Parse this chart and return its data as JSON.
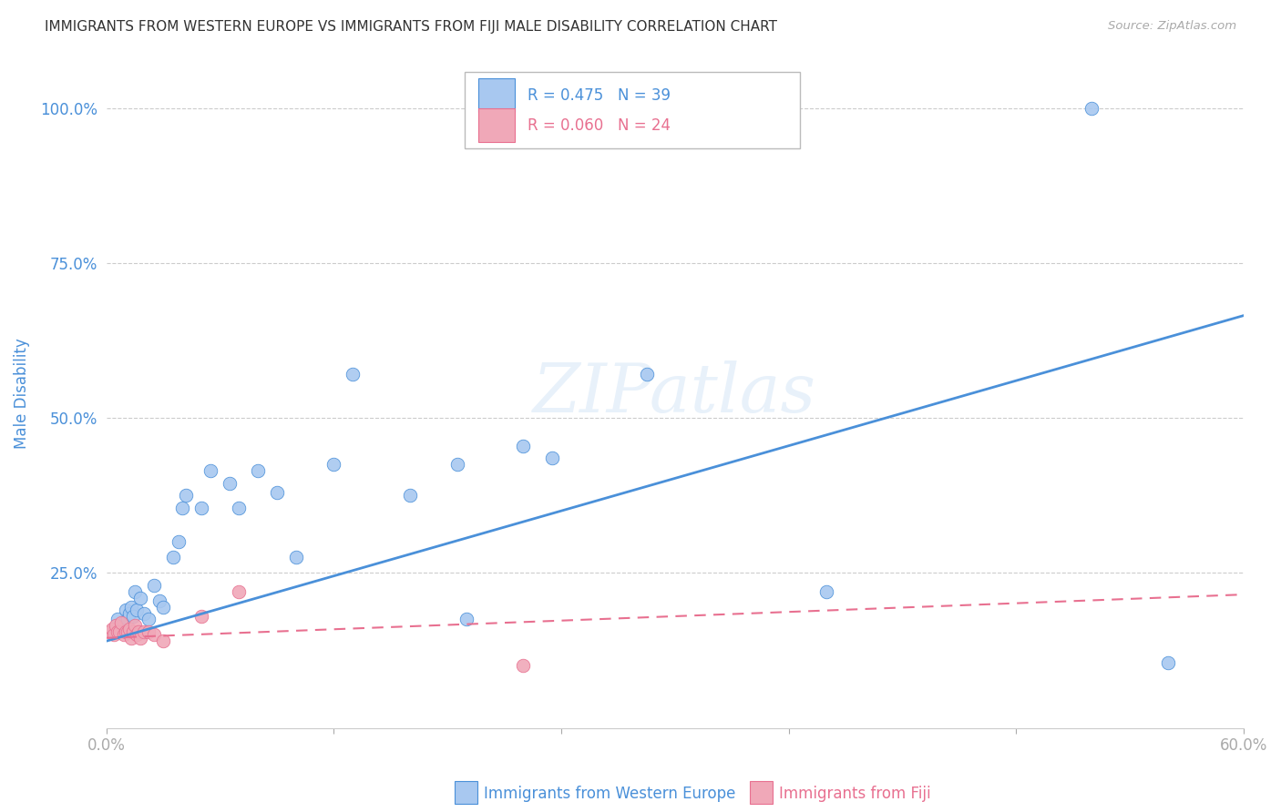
{
  "title": "IMMIGRANTS FROM WESTERN EUROPE VS IMMIGRANTS FROM FIJI MALE DISABILITY CORRELATION CHART",
  "source": "Source: ZipAtlas.com",
  "xlabel_western": "Immigrants from Western Europe",
  "xlabel_fiji": "Immigrants from Fiji",
  "ylabel": "Male Disability",
  "xlim": [
    0.0,
    0.6
  ],
  "ylim": [
    0.0,
    1.08
  ],
  "yticks": [
    0.0,
    0.25,
    0.5,
    0.75,
    1.0
  ],
  "ytick_labels": [
    "",
    "25.0%",
    "50.0%",
    "75.0%",
    "100.0%"
  ],
  "xticks": [
    0.0,
    0.12,
    0.24,
    0.36,
    0.48,
    0.6
  ],
  "xtick_labels": [
    "0.0%",
    "",
    "",
    "",
    "",
    "60.0%"
  ],
  "western_R": 0.475,
  "western_N": 39,
  "fiji_R": 0.06,
  "fiji_N": 24,
  "western_color": "#a8c8f0",
  "fiji_color": "#f0a8b8",
  "trend_western_color": "#4a90d9",
  "trend_fiji_color": "#e87090",
  "background_color": "#ffffff",
  "grid_color": "#cccccc",
  "title_color": "#333333",
  "axis_label_color": "#4a90d9",
  "watermark": "ZIPatlas",
  "western_scatter_x": [
    0.004,
    0.006,
    0.008,
    0.009,
    0.01,
    0.011,
    0.012,
    0.013,
    0.014,
    0.015,
    0.016,
    0.018,
    0.02,
    0.022,
    0.025,
    0.028,
    0.03,
    0.035,
    0.038,
    0.04,
    0.042,
    0.05,
    0.055,
    0.065,
    0.07,
    0.08,
    0.09,
    0.1,
    0.12,
    0.13,
    0.16,
    0.185,
    0.19,
    0.22,
    0.235,
    0.285,
    0.38,
    0.52,
    0.56
  ],
  "western_scatter_y": [
    0.155,
    0.175,
    0.165,
    0.17,
    0.19,
    0.175,
    0.185,
    0.195,
    0.18,
    0.22,
    0.19,
    0.21,
    0.185,
    0.175,
    0.23,
    0.205,
    0.195,
    0.275,
    0.3,
    0.355,
    0.375,
    0.355,
    0.415,
    0.395,
    0.355,
    0.415,
    0.38,
    0.275,
    0.425,
    0.57,
    0.375,
    0.425,
    0.175,
    0.455,
    0.435,
    0.57,
    0.22,
    1.0,
    0.105
  ],
  "fiji_scatter_x": [
    0.002,
    0.003,
    0.004,
    0.005,
    0.006,
    0.007,
    0.008,
    0.009,
    0.01,
    0.011,
    0.012,
    0.013,
    0.014,
    0.015,
    0.016,
    0.017,
    0.018,
    0.02,
    0.022,
    0.025,
    0.03,
    0.05,
    0.07,
    0.22
  ],
  "fiji_scatter_y": [
    0.155,
    0.16,
    0.15,
    0.165,
    0.155,
    0.155,
    0.17,
    0.15,
    0.155,
    0.155,
    0.16,
    0.145,
    0.155,
    0.165,
    0.15,
    0.155,
    0.145,
    0.155,
    0.155,
    0.15,
    0.14,
    0.18,
    0.22,
    0.1
  ],
  "western_trend_x": [
    0.0,
    0.6
  ],
  "western_trend_y": [
    0.14,
    0.665
  ],
  "fiji_trend_x": [
    0.0,
    0.6
  ],
  "fiji_trend_y": [
    0.145,
    0.215
  ]
}
